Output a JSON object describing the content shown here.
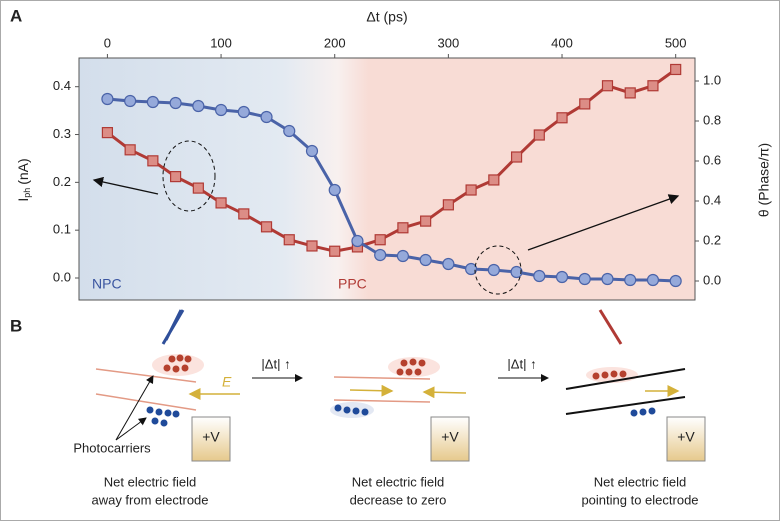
{
  "chart_data": {
    "type": "line",
    "xlabel": "Δt (ps)",
    "ylabel_main": "I",
    "ylabel_sub": "ph",
    "ylabel_unit": "(nA)",
    "y2label": "θ (Phase/π)",
    "x": [
      0,
      20,
      40,
      60,
      80,
      100,
      120,
      140,
      160,
      180,
      200,
      220,
      240,
      260,
      280,
      300,
      320,
      340,
      360,
      380,
      400,
      420,
      440,
      460,
      480,
      500
    ],
    "series": [
      {
        "name": "Iph",
        "color": "#b03a35",
        "marker": "square",
        "axis": "y",
        "values": [
          0.304,
          0.268,
          0.245,
          0.212,
          0.188,
          0.157,
          0.134,
          0.107,
          0.08,
          0.067,
          0.056,
          0.065,
          0.08,
          0.105,
          0.119,
          0.153,
          0.184,
          0.205,
          0.253,
          0.299,
          0.335,
          0.364,
          0.402,
          0.387,
          0.402,
          0.436
        ]
      },
      {
        "name": "θ",
        "color": "#4a63a8",
        "marker": "circle",
        "axis": "y2",
        "values": [
          0.91,
          0.9,
          0.895,
          0.89,
          0.875,
          0.855,
          0.845,
          0.82,
          0.75,
          0.65,
          0.455,
          0.2,
          0.13,
          0.125,
          0.105,
          0.085,
          0.06,
          0.055,
          0.045,
          0.025,
          0.02,
          0.01,
          0.01,
          0.005,
          0.005,
          0
        ]
      }
    ],
    "xlim": [
      -25,
      517
    ],
    "xticks": [
      0,
      100,
      200,
      300,
      400,
      500
    ],
    "ylim": [
      -0.046,
      0.46
    ],
    "yticks": [
      {
        "value": 0,
        "label": "0.0"
      },
      0.1,
      0.2,
      0.3,
      0.4
    ],
    "y2lim": [
      -0.095,
      1.115
    ],
    "y2ticks": [
      {
        "value": 0,
        "label": "0.0"
      },
      0.2,
      0.4,
      0.6,
      0.8,
      {
        "value": 1,
        "label": "1.0"
      }
    ],
    "annotations": [
      "NPC",
      "PPC"
    ]
  },
  "panel_labels": [
    "A",
    "B"
  ],
  "panel_b": {
    "step_label": "|Δt| ↑",
    "field_label": "E",
    "electrode": "+V",
    "carriers": "Photocarriers",
    "captions": [
      [
        "Net electric field",
        "away from electrode"
      ],
      [
        "Net electric field",
        "decrease to zero"
      ],
      [
        "Net electric field",
        "pointing to electrode"
      ]
    ]
  }
}
